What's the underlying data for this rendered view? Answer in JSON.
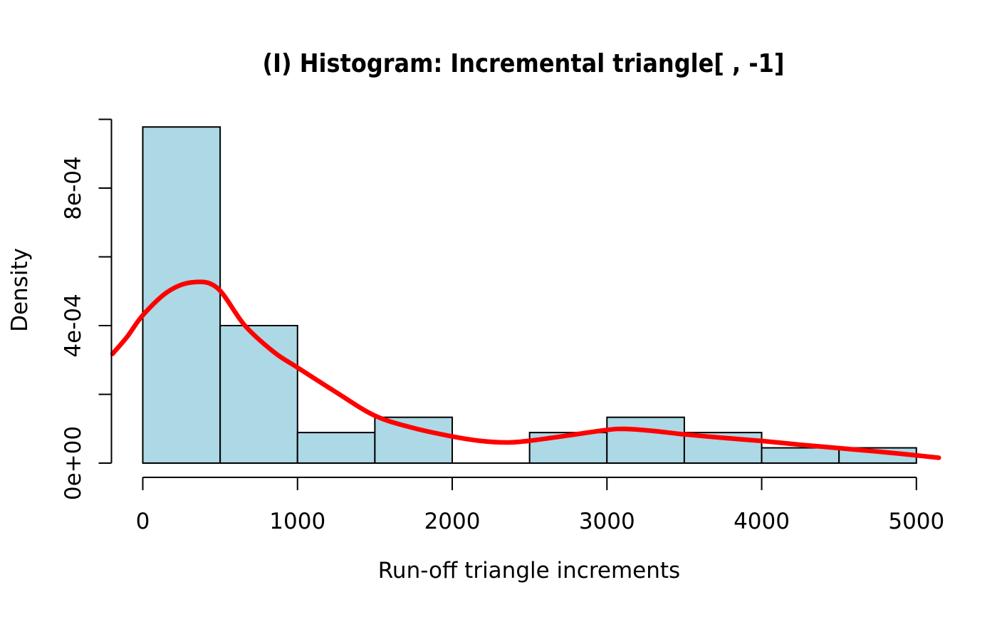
{
  "figure": {
    "title": "(I) Histogram: Incremental triangle[ , -1]",
    "x_axis_label": "Run-off triangle increments",
    "y_axis_label": "Density"
  },
  "colors": {
    "background": "#FFFFFF",
    "bar_fill": "#ADD8E6",
    "bar_stroke": "#000000",
    "density_curve": "#FF0000",
    "axis": "#000000",
    "text": "#000000"
  },
  "chart_data": {
    "type": "bar",
    "subtype": "histogram-with-density-curve",
    "title": "(I) Histogram: Incremental triangle[ , -1]",
    "xlabel": "Run-off triangle increments",
    "ylabel": "Density",
    "xlim": [
      -217,
      5217
    ],
    "ylim": [
      0,
      0.001
    ],
    "grid": false,
    "legend": false,
    "sample_size": 45,
    "bin_width": 500,
    "bins": [
      {
        "from": 0,
        "to": 500,
        "count": 22,
        "density": 0.0009778
      },
      {
        "from": 500,
        "to": 1000,
        "count": 9,
        "density": 0.0004
      },
      {
        "from": 1000,
        "to": 1500,
        "count": 2,
        "density": 8.89e-05
      },
      {
        "from": 1500,
        "to": 2000,
        "count": 3,
        "density": 0.0001333
      },
      {
        "from": 2000,
        "to": 2500,
        "count": 0,
        "density": 0.0
      },
      {
        "from": 2500,
        "to": 3000,
        "count": 2,
        "density": 8.89e-05
      },
      {
        "from": 3000,
        "to": 3500,
        "count": 3,
        "density": 0.0001333
      },
      {
        "from": 3500,
        "to": 4000,
        "count": 2,
        "density": 8.89e-05
      },
      {
        "from": 4000,
        "to": 4500,
        "count": 1,
        "density": 4.44e-05
      },
      {
        "from": 4500,
        "to": 5000,
        "count": 1,
        "density": 4.44e-05
      }
    ],
    "x_ticks": [
      {
        "value": 0,
        "label": "0"
      },
      {
        "value": 1000,
        "label": "1000"
      },
      {
        "value": 2000,
        "label": "2000"
      },
      {
        "value": 3000,
        "label": "3000"
      },
      {
        "value": 4000,
        "label": "4000"
      },
      {
        "value": 5000,
        "label": "5000"
      }
    ],
    "y_ticks": [
      {
        "value": 0.0,
        "label": "0e+00"
      },
      {
        "value": 0.0002,
        "label": ""
      },
      {
        "value": 0.0004,
        "label": "4e-04"
      },
      {
        "value": 0.0006,
        "label": ""
      },
      {
        "value": 0.0008,
        "label": "8e-04"
      },
      {
        "value": 0.001,
        "label": ""
      }
    ],
    "density_curve": [
      [
        -195,
        0.000318
      ],
      [
        -100,
        0.000368
      ],
      [
        0,
        0.00043
      ],
      [
        160,
        0.000498
      ],
      [
        320,
        0.000526
      ],
      [
        480,
        0.00051
      ],
      [
        660,
        0.0004
      ],
      [
        850,
        0.000322
      ],
      [
        1000,
        0.000278
      ],
      [
        1250,
        0.000206
      ],
      [
        1500,
        0.000138
      ],
      [
        1750,
        0.000102
      ],
      [
        2000,
        7.75e-05
      ],
      [
        2175,
        6.5e-05
      ],
      [
        2350,
        6e-05
      ],
      [
        2500,
        6.5e-05
      ],
      [
        2750,
        8.05e-05
      ],
      [
        3000,
        9.65e-05
      ],
      [
        3120,
        9.95e-05
      ],
      [
        3300,
        9.35e-05
      ],
      [
        3500,
        8.35e-05
      ],
      [
        3750,
        7.35e-05
      ],
      [
        4000,
        6.45e-05
      ],
      [
        4250,
        5.35e-05
      ],
      [
        4500,
        4.35e-05
      ],
      [
        4750,
        3.35e-05
      ],
      [
        5000,
        2.25e-05
      ],
      [
        5145,
        1.55e-05
      ]
    ]
  }
}
